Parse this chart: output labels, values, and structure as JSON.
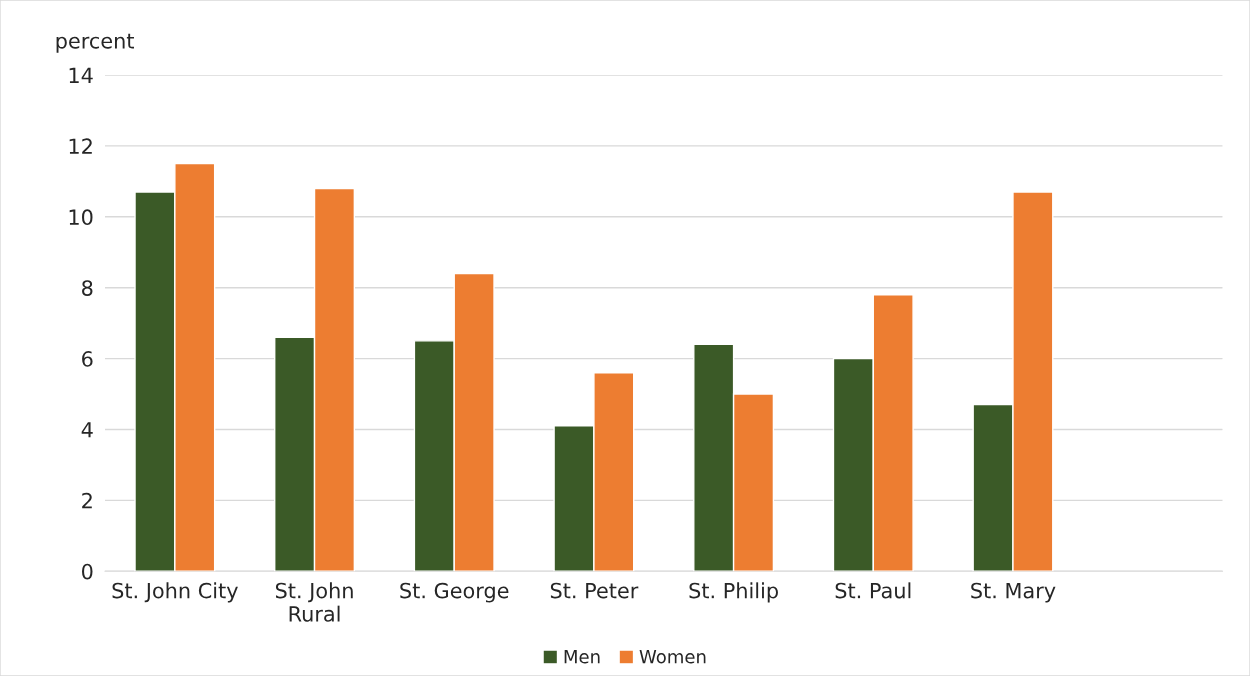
{
  "chart_data": {
    "type": "bar",
    "ylabel": "percent",
    "categories": [
      "St. John City",
      "St. John\nRural",
      "St. George",
      "St. Peter",
      "St. Philip",
      "St. Paul",
      "St. Mary",
      null
    ],
    "series": [
      {
        "name": "Men",
        "color": "#3b5a27",
        "values": [
          10.7,
          6.6,
          6.5,
          4.1,
          6.4,
          6.0,
          4.7,
          null
        ]
      },
      {
        "name": "Women",
        "color": "#ed7d31",
        "values": [
          11.5,
          10.8,
          8.4,
          5.6,
          5.0,
          7.8,
          10.7,
          null
        ]
      }
    ],
    "ylim": [
      0,
      14
    ],
    "yticks": [
      0,
      2,
      4,
      6,
      8,
      10,
      12,
      14
    ],
    "grid": "y",
    "legend": "bottom"
  }
}
